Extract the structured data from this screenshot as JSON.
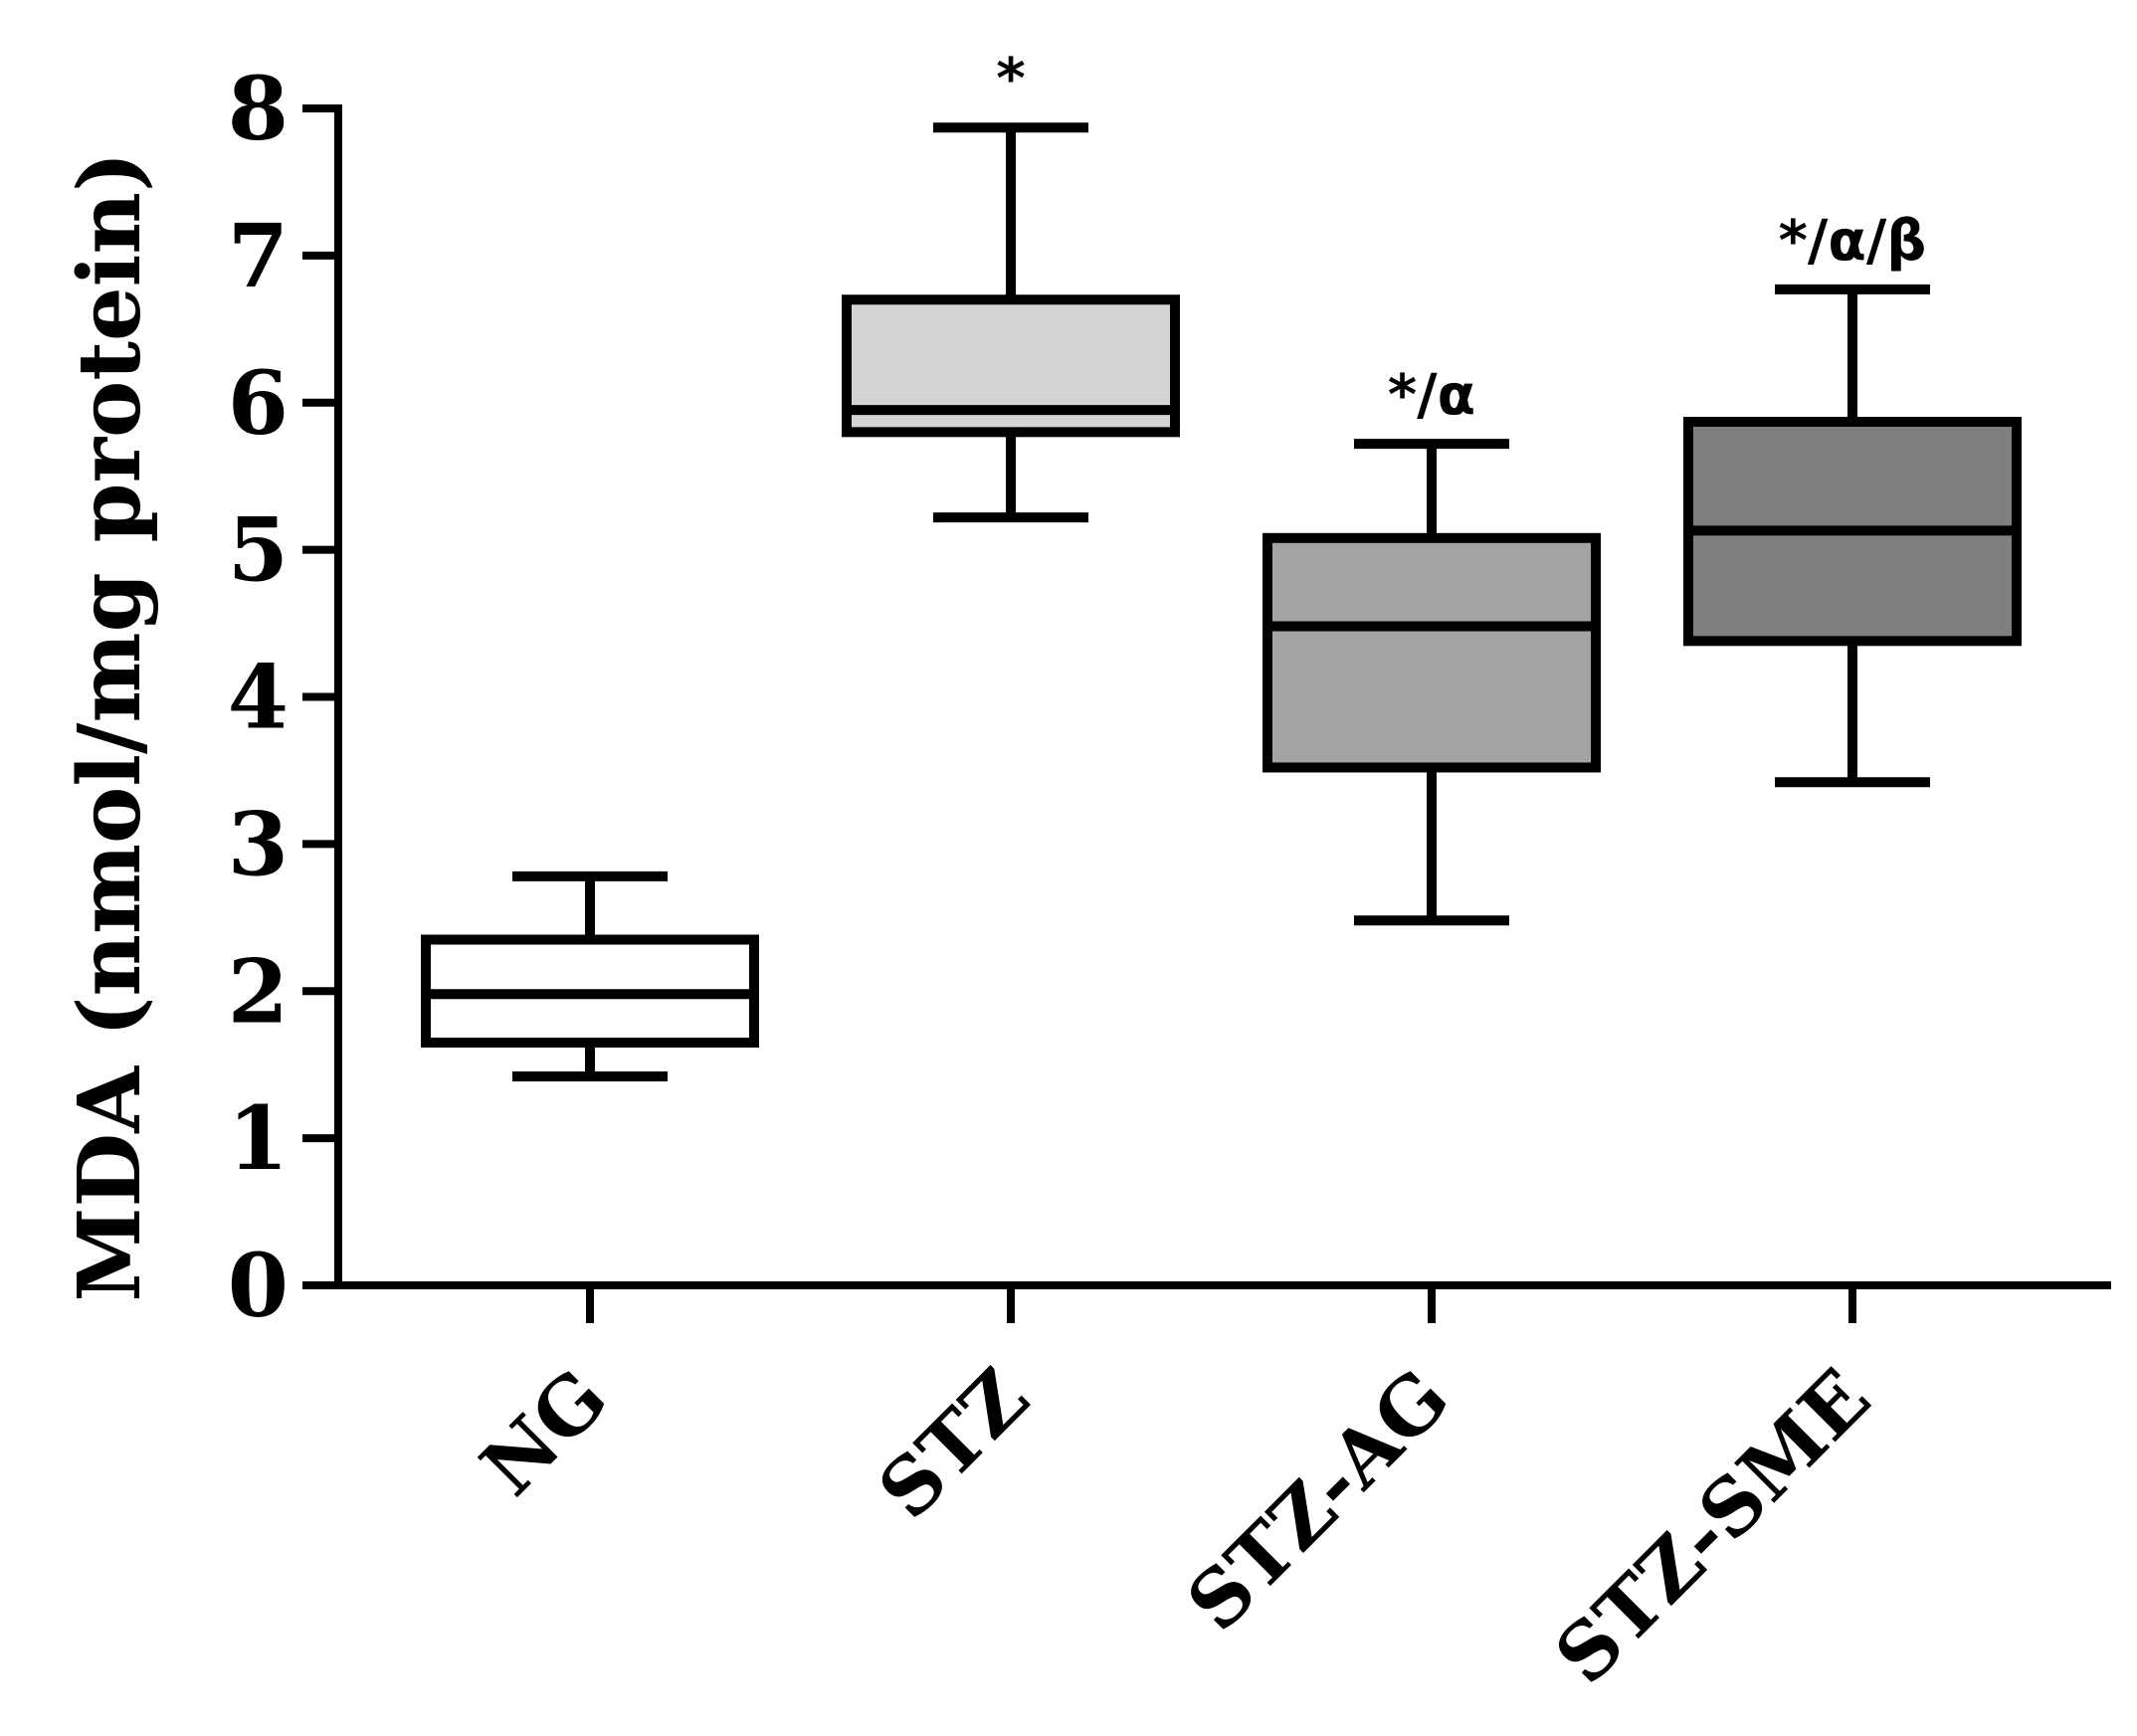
{
  "chart_data": {
    "type": "box",
    "ylabel": "MDA (nmol/mg protein)",
    "xlabel": "",
    "ylim": [
      0,
      8
    ],
    "yticks": [
      "0",
      "1",
      "2",
      "3",
      "4",
      "5",
      "6",
      "7",
      "8"
    ],
    "grid": false,
    "categories": [
      "NG",
      "STZ",
      "STZ-AG",
      "STZ-SME"
    ],
    "boxes": [
      {
        "group": "NG",
        "min": 1.42,
        "q1": 1.65,
        "median": 1.98,
        "q3": 2.35,
        "max": 2.78,
        "fill": "#ffffff",
        "annotation": ""
      },
      {
        "group": "STZ",
        "min": 5.22,
        "q1": 5.8,
        "median": 5.95,
        "q3": 6.7,
        "max": 7.87,
        "fill": "#d4d4d4",
        "annotation": "*"
      },
      {
        "group": "STZ-AG",
        "min": 2.48,
        "q1": 3.52,
        "median": 4.48,
        "q3": 5.08,
        "max": 5.72,
        "fill": "#a3a3a6",
        "annotation": "*/α"
      },
      {
        "group": "STZ-SME",
        "min": 3.42,
        "q1": 4.38,
        "median": 5.13,
        "q3": 5.87,
        "max": 6.77,
        "fill": "#7f7f7f",
        "annotation": "*/α/β"
      }
    ]
  }
}
